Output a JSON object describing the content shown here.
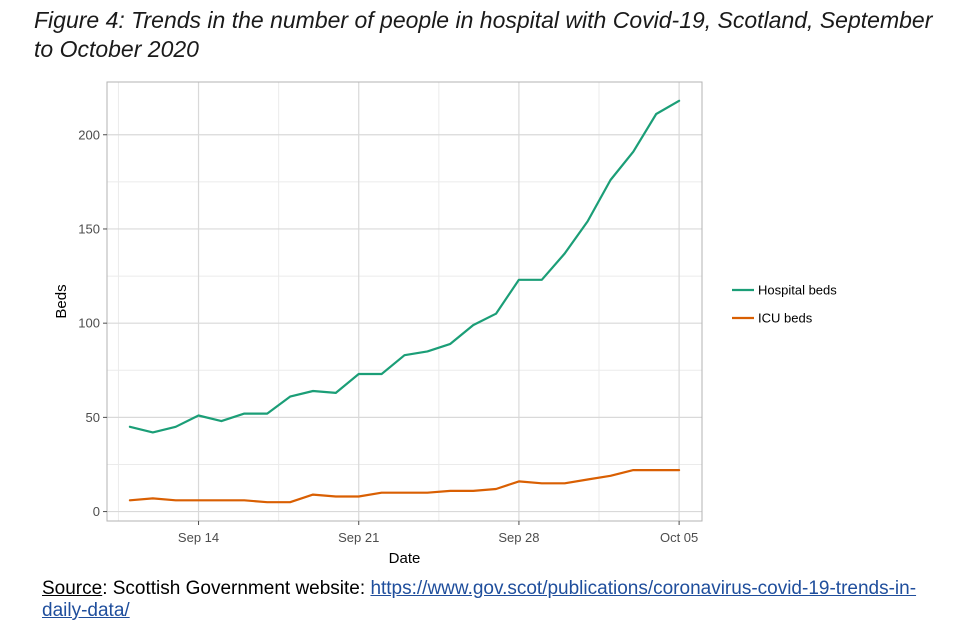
{
  "title": "Figure 4: Trends in the number of people in hospital with Covid-19, Scotland, September to October 2020",
  "source": {
    "label": "Source",
    "text": ": Scottish Government website: ",
    "link": "https://www.gov.scot/publications/coronavirus-covid-19-trends-in-daily-data/"
  },
  "chart_data": {
    "type": "line",
    "xlabel": "Date",
    "ylabel": "Beds",
    "x": [
      "2020-09-11",
      "2020-09-12",
      "2020-09-13",
      "2020-09-14",
      "2020-09-15",
      "2020-09-16",
      "2020-09-17",
      "2020-09-18",
      "2020-09-19",
      "2020-09-20",
      "2020-09-21",
      "2020-09-22",
      "2020-09-23",
      "2020-09-24",
      "2020-09-25",
      "2020-09-26",
      "2020-09-27",
      "2020-09-28",
      "2020-09-29",
      "2020-09-30",
      "2020-10-01",
      "2020-10-02",
      "2020-10-03",
      "2020-10-04",
      "2020-10-05"
    ],
    "x_ticks": [
      "Sep 14",
      "Sep 21",
      "Sep 28",
      "Oct 05"
    ],
    "x_tick_dates": [
      "2020-09-14",
      "2020-09-21",
      "2020-09-28",
      "2020-10-05"
    ],
    "xlim": [
      "2020-09-10",
      "2020-10-06"
    ],
    "y_ticks": [
      0,
      50,
      100,
      150,
      200
    ],
    "ylim": [
      -5,
      228
    ],
    "grid": true,
    "legend_position": "right",
    "series": [
      {
        "name": "Hospital beds",
        "color": "#1b9e77",
        "values": [
          45,
          42,
          45,
          51,
          48,
          52,
          52,
          61,
          64,
          63,
          73,
          73,
          83,
          85,
          89,
          99,
          105,
          123,
          123,
          137,
          154,
          176,
          191,
          211,
          218
        ]
      },
      {
        "name": "ICU beds",
        "color": "#d95f02",
        "values": [
          6,
          7,
          6,
          6,
          6,
          6,
          5,
          5,
          9,
          8,
          8,
          10,
          10,
          10,
          11,
          11,
          12,
          16,
          15,
          15,
          17,
          19,
          22,
          22,
          22
        ]
      }
    ]
  }
}
